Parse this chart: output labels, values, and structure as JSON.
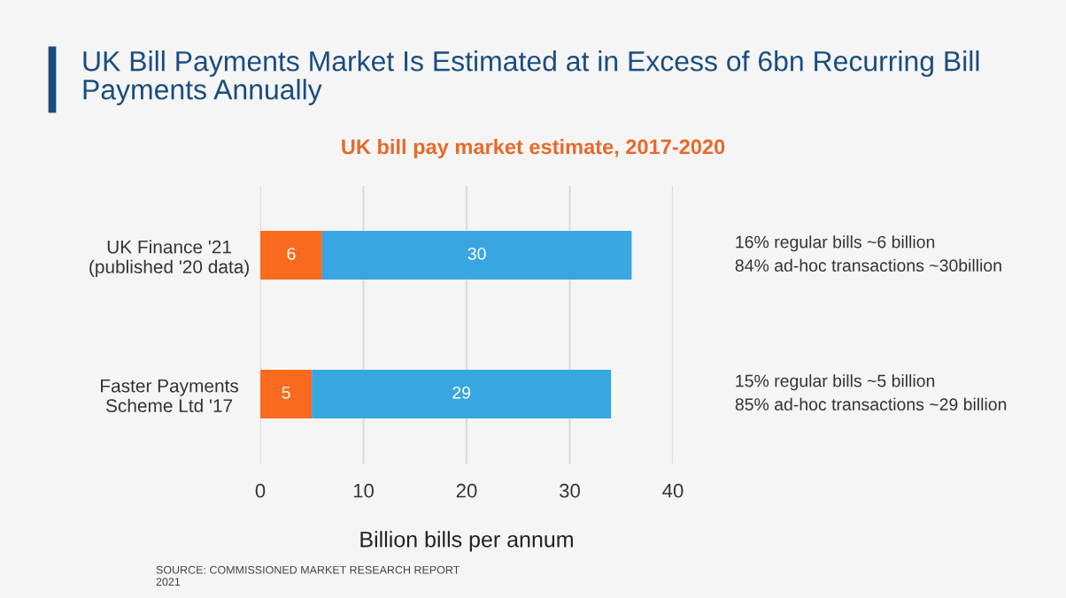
{
  "chart_data": {
    "type": "bar",
    "orientation": "horizontal",
    "stacked": true,
    "title": "UK Bill Payments Market Is Estimated at in Excess of 6bn Recurring Bill Payments Annually",
    "subtitle": "UK bill pay market estimate, 2017-2020",
    "xlabel": "Billion bills per annum",
    "categories": [
      "UK Finance '21\n(published '20 data)",
      "Faster Payments\nScheme Ltd '17"
    ],
    "series": [
      {
        "color": "#f96a1e",
        "values": [
          6,
          5
        ]
      },
      {
        "color": "#38a6e0",
        "values": [
          30,
          29
        ]
      }
    ],
    "data_labels": true,
    "xlim": [
      0,
      40
    ],
    "xticks": [
      0,
      10,
      20,
      30,
      40
    ],
    "grid": "x",
    "legend": false,
    "annotations": [
      "16% regular bills ~6 billion\n84% ad-hoc transactions ~30billion",
      "15% regular bills ~5 billion\n85% ad-hoc transactions ~29 billion",
      "SOURCE: COMMISSIONED MARKET RESEARCH REPORT\n2021"
    ]
  }
}
